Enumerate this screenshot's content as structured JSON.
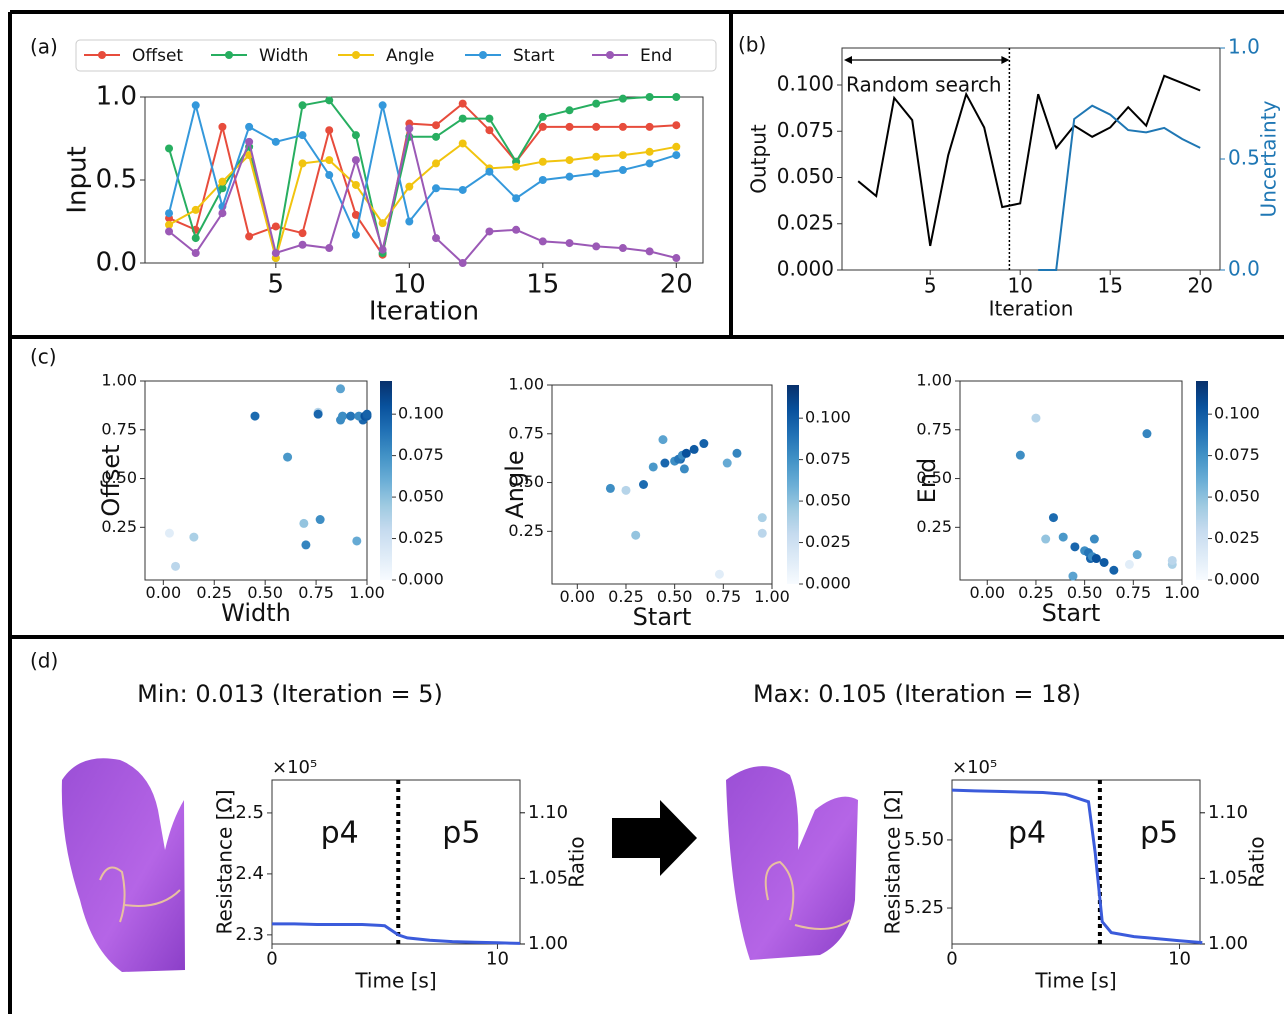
{
  "chart_data": [
    {
      "type": "line",
      "panel": "(a)",
      "xlabel": "Iteration",
      "ylabel": "Input",
      "legend": "top",
      "markers": true,
      "x": [
        1,
        2,
        3,
        4,
        5,
        6,
        7,
        8,
        9,
        10,
        11,
        12,
        13,
        14,
        15,
        16,
        17,
        18,
        19,
        20
      ],
      "xlim": [
        0.1,
        21.0
      ],
      "xticks": [
        5,
        10,
        15,
        20
      ],
      "ylim": [
        0,
        1.0
      ],
      "yticks": [
        {
          "value": 0,
          "label": "0.0"
        },
        {
          "value": 0.5,
          "label": "0.5"
        },
        {
          "value": 1,
          "label": "1.0"
        }
      ],
      "series": [
        {
          "name": "Offset",
          "color": "#e74c3c",
          "values": [
            0.27,
            0.2,
            0.82,
            0.16,
            0.22,
            0.18,
            0.8,
            0.29,
            0.05,
            0.84,
            0.83,
            0.96,
            0.8,
            0.61,
            0.82,
            0.82,
            0.82,
            0.82,
            0.82,
            0.83
          ]
        },
        {
          "name": "Width",
          "color": "#27ae60",
          "values": [
            0.69,
            0.15,
            0.45,
            0.7,
            0.03,
            0.95,
            0.98,
            0.77,
            0.06,
            0.76,
            0.76,
            0.87,
            0.87,
            0.61,
            0.88,
            0.92,
            0.96,
            0.99,
            1.0,
            1.0
          ]
        },
        {
          "name": "Angle",
          "color": "#f1c40f",
          "values": [
            0.23,
            0.32,
            0.49,
            0.65,
            0.03,
            0.6,
            0.62,
            0.47,
            0.24,
            0.46,
            0.6,
            0.72,
            0.57,
            0.58,
            0.61,
            0.62,
            0.64,
            0.65,
            0.67,
            0.7
          ]
        },
        {
          "name": "Start",
          "color": "#3498db",
          "values": [
            0.3,
            0.95,
            0.34,
            0.82,
            0.73,
            0.77,
            0.53,
            0.17,
            0.95,
            0.25,
            0.45,
            0.44,
            0.55,
            0.39,
            0.5,
            0.52,
            0.54,
            0.56,
            0.6,
            0.65
          ]
        },
        {
          "name": "End",
          "color": "#9b59b6",
          "values": [
            0.19,
            0.06,
            0.3,
            0.73,
            0.06,
            0.11,
            0.09,
            0.62,
            0.08,
            0.81,
            0.15,
            0.0,
            0.19,
            0.2,
            0.13,
            0.12,
            0.1,
            0.09,
            0.07,
            0.03
          ]
        }
      ]
    },
    {
      "type": "line",
      "panel": "(b)",
      "xlabel": "Iteration",
      "ylabel": "Output",
      "y2label": "Uncertainty",
      "x": [
        1,
        2,
        3,
        4,
        5,
        6,
        7,
        8,
        9,
        10,
        11,
        12,
        13,
        14,
        15,
        16,
        17,
        18,
        19,
        20
      ],
      "xlim": [
        0.1,
        21.1
      ],
      "xticks": [
        5,
        10,
        15,
        20
      ],
      "ylim": [
        0,
        0.12
      ],
      "yticks": [
        {
          "value": 0,
          "label": "0.000"
        },
        {
          "value": 0.025,
          "label": "0.025"
        },
        {
          "value": 0.05,
          "label": "0.050"
        },
        {
          "value": 0.075,
          "label": "0.075"
        },
        {
          "value": 0.1,
          "label": "0.100"
        }
      ],
      "y2lim": [
        0,
        1.0
      ],
      "y2ticks": [
        {
          "value": 0,
          "label": "0.0"
        },
        {
          "value": 0.5,
          "label": "0.5"
        },
        {
          "value": 1,
          "label": "1.0"
        }
      ],
      "vline": 9.4,
      "annotation": "Random search",
      "series": [
        {
          "color": "#000000",
          "values": [
            0.048,
            0.04,
            0.093,
            0.081,
            0.013,
            0.062,
            0.095,
            0.077,
            0.034,
            0.036,
            0.095,
            0.066,
            0.078,
            0.072,
            0.077,
            0.088,
            0.078,
            0.105,
            0.101,
            0.097
          ]
        },
        {
          "color": "#1f77b4",
          "axis": "y2",
          "values": [
            null,
            null,
            null,
            null,
            null,
            null,
            null,
            null,
            null,
            null,
            0,
            0,
            0.68,
            0.74,
            0.7,
            0.63,
            0.62,
            0.64,
            0.59,
            0.55
          ]
        }
      ]
    },
    {
      "type": "scatter",
      "panel": "(c)",
      "xlabel": "Width",
      "ylabel": "Offset",
      "colormap": "Blues",
      "x": [
        0.69,
        0.15,
        0.45,
        0.7,
        0.03,
        0.95,
        0.98,
        0.77,
        0.06,
        0.76,
        0.76,
        0.87,
        0.87,
        0.61,
        0.88,
        0.92,
        0.96,
        0.99,
        1.0,
        1.0
      ],
      "y": [
        0.27,
        0.2,
        0.82,
        0.16,
        0.22,
        0.18,
        0.8,
        0.29,
        0.05,
        0.84,
        0.83,
        0.96,
        0.8,
        0.61,
        0.82,
        0.82,
        0.82,
        0.82,
        0.82,
        0.83
      ],
      "c": [
        0.048,
        0.04,
        0.093,
        0.081,
        0.013,
        0.062,
        0.095,
        0.077,
        0.034,
        0.036,
        0.095,
        0.066,
        0.078,
        0.072,
        0.077,
        0.088,
        0.078,
        0.105,
        0.101,
        0.097
      ],
      "xlim": [
        -0.09,
        1.0
      ],
      "ylim": [
        -0.02,
        1.0
      ],
      "xticks": [
        {
          "value": 0,
          "label": "0.00"
        },
        {
          "value": 0.25,
          "label": "0.25"
        },
        {
          "value": 0.5,
          "label": "0.50"
        },
        {
          "value": 0.75,
          "label": "0.75"
        },
        {
          "value": 1,
          "label": "1.00"
        }
      ],
      "yticks": [
        {
          "value": 0.25,
          "label": "0.25"
        },
        {
          "value": 0.5,
          "label": "0.50"
        },
        {
          "value": 0.75,
          "label": "0.75"
        },
        {
          "value": 1,
          "label": "1.00"
        }
      ],
      "clim": [
        0,
        0.12
      ],
      "cticks": [
        {
          "value": 0,
          "label": "0.000"
        },
        {
          "value": 0.025,
          "label": "0.025"
        },
        {
          "value": 0.05,
          "label": "0.050"
        },
        {
          "value": 0.075,
          "label": "0.075"
        },
        {
          "value": 0.1,
          "label": "0.100"
        }
      ]
    },
    {
      "type": "scatter",
      "xlabel": "Start",
      "ylabel": "Angle",
      "colormap": "Blues",
      "x": [
        0.3,
        0.95,
        0.34,
        0.82,
        0.73,
        0.77,
        0.53,
        0.17,
        0.95,
        0.25,
        0.45,
        0.44,
        0.55,
        0.39,
        0.5,
        0.52,
        0.54,
        0.56,
        0.6,
        0.65
      ],
      "y": [
        0.23,
        0.32,
        0.49,
        0.65,
        0.03,
        0.6,
        0.62,
        0.47,
        0.24,
        0.46,
        0.6,
        0.72,
        0.57,
        0.58,
        0.61,
        0.62,
        0.64,
        0.65,
        0.67,
        0.7
      ],
      "c": [
        0.048,
        0.04,
        0.093,
        0.081,
        0.013,
        0.062,
        0.095,
        0.077,
        0.034,
        0.036,
        0.095,
        0.066,
        0.078,
        0.072,
        0.077,
        0.088,
        0.078,
        0.105,
        0.101,
        0.097
      ],
      "xlim": [
        -0.13,
        1.0
      ],
      "ylim": [
        -0.02,
        1.0
      ],
      "xticks": [
        {
          "value": 0,
          "label": "0.00"
        },
        {
          "value": 0.25,
          "label": "0.25"
        },
        {
          "value": 0.5,
          "label": "0.50"
        },
        {
          "value": 0.75,
          "label": "0.75"
        },
        {
          "value": 1,
          "label": "1.00"
        }
      ],
      "yticks": [
        {
          "value": 0.25,
          "label": "0.25"
        },
        {
          "value": 0.5,
          "label": "0.50"
        },
        {
          "value": 0.75,
          "label": "0.75"
        },
        {
          "value": 1,
          "label": "1.00"
        }
      ],
      "clim": [
        0,
        0.12
      ],
      "cticks": [
        {
          "value": 0,
          "label": "0.000"
        },
        {
          "value": 0.025,
          "label": "0.025"
        },
        {
          "value": 0.05,
          "label": "0.050"
        },
        {
          "value": 0.075,
          "label": "0.075"
        },
        {
          "value": 0.1,
          "label": "0.100"
        }
      ]
    },
    {
      "type": "scatter",
      "xlabel": "Start",
      "ylabel": "End",
      "colormap": "Blues",
      "x": [
        0.3,
        0.95,
        0.34,
        0.82,
        0.73,
        0.77,
        0.53,
        0.17,
        0.95,
        0.25,
        0.45,
        0.44,
        0.55,
        0.39,
        0.5,
        0.52,
        0.54,
        0.56,
        0.6,
        0.65
      ],
      "y": [
        0.19,
        0.06,
        0.3,
        0.73,
        0.06,
        0.11,
        0.09,
        0.62,
        0.08,
        0.81,
        0.15,
        0.0,
        0.19,
        0.2,
        0.13,
        0.12,
        0.1,
        0.09,
        0.07,
        0.03
      ],
      "c": [
        0.048,
        0.04,
        0.093,
        0.081,
        0.013,
        0.062,
        0.095,
        0.077,
        0.034,
        0.036,
        0.095,
        0.066,
        0.078,
        0.072,
        0.077,
        0.088,
        0.078,
        0.105,
        0.101,
        0.097
      ],
      "xlim": [
        -0.14,
        1.0
      ],
      "ylim": [
        -0.02,
        1.0
      ],
      "xticks": [
        {
          "value": 0,
          "label": "0.00"
        },
        {
          "value": 0.25,
          "label": "0.25"
        },
        {
          "value": 0.5,
          "label": "0.50"
        },
        {
          "value": 0.75,
          "label": "0.75"
        },
        {
          "value": 1,
          "label": "1.00"
        }
      ],
      "yticks": [
        {
          "value": 0.25,
          "label": "0.25"
        },
        {
          "value": 0.5,
          "label": "0.50"
        },
        {
          "value": 0.75,
          "label": "0.75"
        },
        {
          "value": 1,
          "label": "1.00"
        }
      ],
      "clim": [
        0,
        0.12
      ],
      "cticks": [
        {
          "value": 0,
          "label": "0.000"
        },
        {
          "value": 0.025,
          "label": "0.025"
        },
        {
          "value": 0.05,
          "label": "0.050"
        },
        {
          "value": 0.075,
          "label": "0.075"
        },
        {
          "value": 0.1,
          "label": "0.100"
        }
      ]
    },
    {
      "type": "line",
      "panel": "(d)",
      "title": "Min: 0.013 (Iteration = 5)",
      "xlabel": "Time [s]",
      "ylabel": "Resistance [Ω]",
      "y2label": "Ratio",
      "y_multiplier": "×10⁵",
      "x": [
        0,
        1,
        2,
        3,
        4,
        5,
        5.6,
        6,
        7,
        8,
        9,
        10,
        11
      ],
      "xlim": [
        0,
        11
      ],
      "xticks": [
        0,
        10
      ],
      "ylim": [
        2.285,
        2.554
      ],
      "yticks": [
        2.3,
        2.4,
        2.5
      ],
      "y2lim": [
        1.0,
        1.125
      ],
      "y2ticks": [
        {
          "value": 1,
          "label": "1.00"
        },
        {
          "value": 1.05,
          "label": "1.05"
        },
        {
          "value": 1.1,
          "label": "1.10"
        }
      ],
      "vline": 5.6,
      "annotations": [
        {
          "text": "p4",
          "x": 3.0
        },
        {
          "text": "p5",
          "x": 8.4
        }
      ],
      "series": [
        {
          "color": "#3b5bdb",
          "values": [
            2.318,
            2.318,
            2.317,
            2.317,
            2.317,
            2.315,
            2.3,
            2.295,
            2.291,
            2.289,
            2.288,
            2.287,
            2.286
          ]
        }
      ]
    },
    {
      "type": "line",
      "title": "Max: 0.105 (Iteration = 18)",
      "xlabel": "Time [s]",
      "ylabel": "Resistance [Ω]",
      "y2label": "Ratio",
      "y_multiplier": "×10⁵",
      "x": [
        0,
        1,
        2,
        3,
        4,
        5,
        6,
        6.3,
        6.6,
        7,
        8,
        9,
        10,
        11
      ],
      "xlim": [
        0,
        10.9
      ],
      "xticks": [
        0,
        10
      ],
      "ylim": [
        5.118,
        5.72
      ],
      "yticks": [
        {
          "value": 5.25,
          "label": "5.25"
        },
        {
          "value": 5.5,
          "label": "5.50"
        }
      ],
      "y2lim": [
        1.0,
        1.125
      ],
      "y2ticks": [
        {
          "value": 1,
          "label": "1.00"
        },
        {
          "value": 1.05,
          "label": "1.05"
        },
        {
          "value": 1.1,
          "label": "1.10"
        }
      ],
      "vline": 6.5,
      "annotations": [
        {
          "text": "p4",
          "x": 3.3
        },
        {
          "text": "p5",
          "x": 9.1
        }
      ],
      "series": [
        {
          "color": "#3b5bdb",
          "values": [
            5.683,
            5.68,
            5.678,
            5.676,
            5.674,
            5.667,
            5.64,
            5.45,
            5.2,
            5.16,
            5.145,
            5.138,
            5.13,
            5.123
          ]
        }
      ]
    }
  ]
}
